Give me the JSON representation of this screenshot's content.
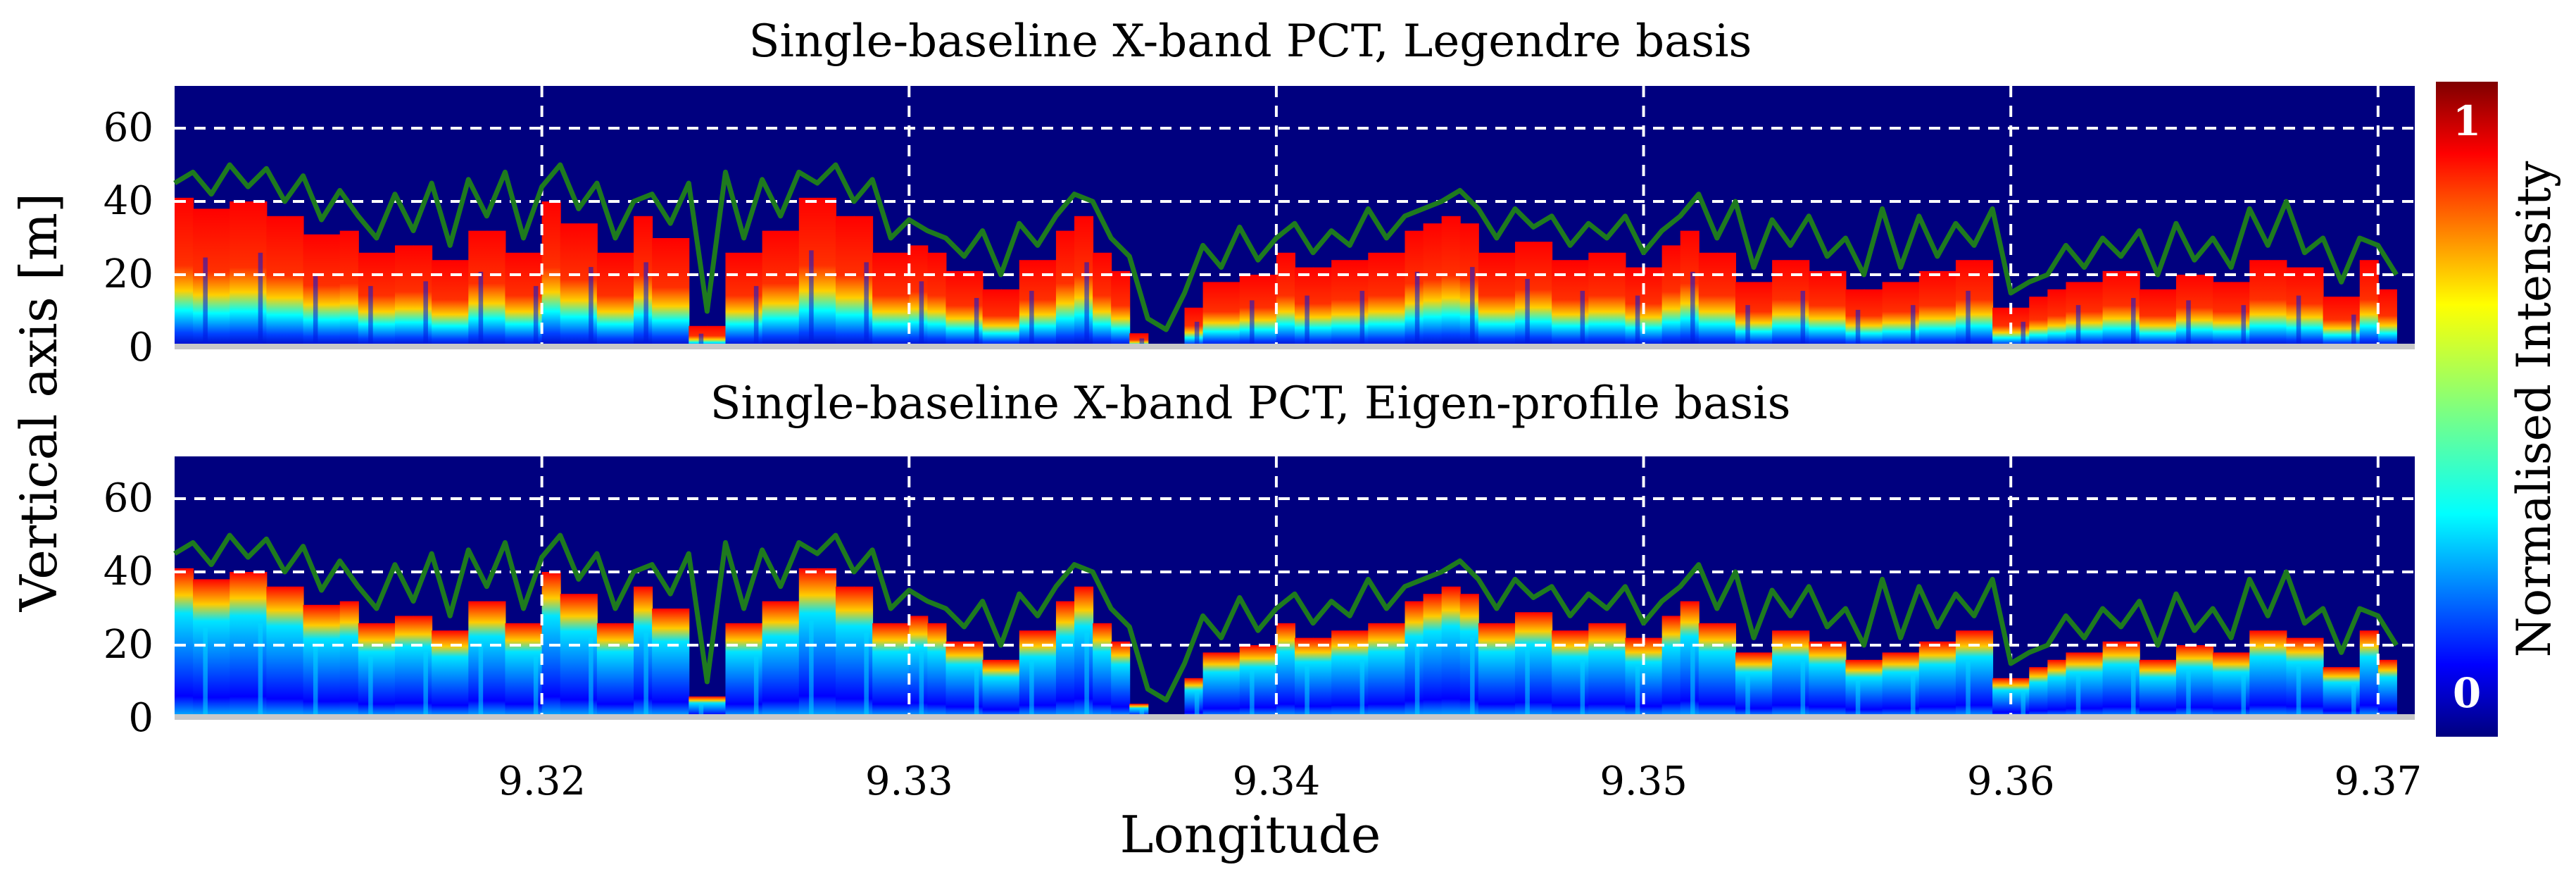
{
  "chart_data": [
    {
      "type": "heatmap",
      "title": "Single-baseline X-band PCT, Legendre basis",
      "xlabel": "Longitude",
      "ylabel": "Vertical axis [m]",
      "xlim": [
        9.31,
        9.371
      ],
      "ylim": [
        0,
        70
      ],
      "x_ticks": [
        "9.32",
        "9.33",
        "9.34",
        "9.35",
        "9.36",
        "9.37"
      ],
      "y_ticks": [
        "0",
        "20",
        "40",
        "60"
      ],
      "grid": "dashed white at ticks",
      "background_color": "#00007f",
      "overlay_line_color": "#1e7a1e",
      "canopy_height_profile": [
        [
          9.31,
          45
        ],
        [
          9.3105,
          48
        ],
        [
          9.311,
          42
        ],
        [
          9.3115,
          50
        ],
        [
          9.312,
          44
        ],
        [
          9.3125,
          49
        ],
        [
          9.313,
          40
        ],
        [
          9.3135,
          47
        ],
        [
          9.314,
          35
        ],
        [
          9.3145,
          43
        ],
        [
          9.315,
          36
        ],
        [
          9.3155,
          30
        ],
        [
          9.316,
          42
        ],
        [
          9.3165,
          32
        ],
        [
          9.317,
          45
        ],
        [
          9.3175,
          28
        ],
        [
          9.318,
          46
        ],
        [
          9.3185,
          36
        ],
        [
          9.319,
          48
        ],
        [
          9.3195,
          30
        ],
        [
          9.32,
          44
        ],
        [
          9.3205,
          50
        ],
        [
          9.321,
          38
        ],
        [
          9.3215,
          45
        ],
        [
          9.322,
          30
        ],
        [
          9.3225,
          40
        ],
        [
          9.323,
          42
        ],
        [
          9.3235,
          34
        ],
        [
          9.324,
          45
        ],
        [
          9.3245,
          10
        ],
        [
          9.325,
          48
        ],
        [
          9.3255,
          30
        ],
        [
          9.326,
          46
        ],
        [
          9.3265,
          36
        ],
        [
          9.327,
          48
        ],
        [
          9.3275,
          45
        ],
        [
          9.328,
          50
        ],
        [
          9.3285,
          40
        ],
        [
          9.329,
          46
        ],
        [
          9.3295,
          30
        ],
        [
          9.33,
          35
        ],
        [
          9.3305,
          32
        ],
        [
          9.331,
          30
        ],
        [
          9.3315,
          25
        ],
        [
          9.332,
          32
        ],
        [
          9.3325,
          20
        ],
        [
          9.333,
          34
        ],
        [
          9.3335,
          28
        ],
        [
          9.334,
          36
        ],
        [
          9.3345,
          42
        ],
        [
          9.335,
          40
        ],
        [
          9.3355,
          30
        ],
        [
          9.336,
          25
        ],
        [
          9.3365,
          8
        ],
        [
          9.337,
          5
        ],
        [
          9.3375,
          15
        ],
        [
          9.338,
          28
        ],
        [
          9.3385,
          22
        ],
        [
          9.339,
          33
        ],
        [
          9.3395,
          24
        ],
        [
          9.34,
          30
        ],
        [
          9.3405,
          34
        ],
        [
          9.341,
          26
        ],
        [
          9.3415,
          32
        ],
        [
          9.342,
          28
        ],
        [
          9.3425,
          38
        ],
        [
          9.343,
          30
        ],
        [
          9.3435,
          36
        ],
        [
          9.344,
          38
        ],
        [
          9.3445,
          40
        ],
        [
          9.345,
          43
        ],
        [
          9.3455,
          38
        ],
        [
          9.346,
          30
        ],
        [
          9.3465,
          38
        ],
        [
          9.347,
          33
        ],
        [
          9.3475,
          36
        ],
        [
          9.348,
          28
        ],
        [
          9.3485,
          34
        ],
        [
          9.349,
          30
        ],
        [
          9.3495,
          36
        ],
        [
          9.35,
          26
        ],
        [
          9.3505,
          32
        ],
        [
          9.351,
          36
        ],
        [
          9.3515,
          42
        ],
        [
          9.352,
          30
        ],
        [
          9.3525,
          40
        ],
        [
          9.353,
          22
        ],
        [
          9.3535,
          35
        ],
        [
          9.354,
          28
        ],
        [
          9.3545,
          36
        ],
        [
          9.355,
          25
        ],
        [
          9.3555,
          30
        ],
        [
          9.356,
          20
        ],
        [
          9.3565,
          38
        ],
        [
          9.357,
          22
        ],
        [
          9.3575,
          36
        ],
        [
          9.358,
          25
        ],
        [
          9.3585,
          34
        ],
        [
          9.359,
          28
        ],
        [
          9.3595,
          38
        ],
        [
          9.36,
          15
        ],
        [
          9.3605,
          18
        ],
        [
          9.361,
          20
        ],
        [
          9.3615,
          28
        ],
        [
          9.362,
          22
        ],
        [
          9.3625,
          30
        ],
        [
          9.363,
          25
        ],
        [
          9.3635,
          32
        ],
        [
          9.364,
          20
        ],
        [
          9.3645,
          34
        ],
        [
          9.365,
          24
        ],
        [
          9.3655,
          30
        ],
        [
          9.366,
          22
        ],
        [
          9.3665,
          38
        ],
        [
          9.367,
          28
        ],
        [
          9.3675,
          40
        ],
        [
          9.368,
          26
        ],
        [
          9.3685,
          30
        ],
        [
          9.369,
          18
        ],
        [
          9.3695,
          30
        ],
        [
          9.37,
          28
        ],
        [
          9.3705,
          20
        ]
      ]
    },
    {
      "type": "heatmap",
      "title": "Single-baseline X-band PCT, Eigen-profile basis",
      "xlabel": "Longitude",
      "ylabel": "Vertical axis [m]",
      "xlim": [
        9.31,
        9.371
      ],
      "ylim": [
        0,
        70
      ],
      "x_ticks": [
        "9.32",
        "9.33",
        "9.34",
        "9.35",
        "9.36",
        "9.37"
      ],
      "y_ticks": [
        "0",
        "20",
        "40",
        "60"
      ],
      "grid": "dashed white at ticks",
      "background_color": "#00007f",
      "overlay_line_color": "#1e7a1e",
      "canopy_height_profile": "same as Legendre panel"
    }
  ],
  "colorbar": {
    "label": "Normalised Intensity",
    "min_label": "0",
    "max_label": "1",
    "colormap": "jet",
    "placement": "right"
  },
  "colors": {
    "background": "#00007f",
    "line": "#1e7a1e",
    "grid": "#ffffff",
    "ground": "#c8c8c8"
  }
}
